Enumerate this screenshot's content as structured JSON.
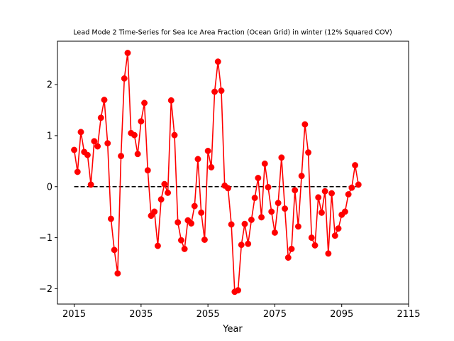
{
  "chart_data": {
    "type": "line",
    "title": "Lead Mode 2 Time-Series for Sea Ice Area Fraction (Ocean Grid) in winter (12% Squared COV)",
    "xlabel": "Year",
    "ylabel": "",
    "xlim": [
      2010,
      2115
    ],
    "ylim": [
      -2.3,
      2.85
    ],
    "xticks": [
      2015,
      2035,
      2055,
      2075,
      2095,
      2115
    ],
    "yticks": [
      -2,
      -1,
      0,
      1,
      2
    ],
    "ytick_labels": [
      "−2",
      "−1",
      "0",
      "1",
      "2"
    ],
    "grid": false,
    "legend": "none",
    "reference_line": {
      "y": 0,
      "x_start": 2015,
      "x_end": 2100,
      "style": "dashed",
      "color": "#000000"
    },
    "series": [
      {
        "color": "#ff0000",
        "marker": "circle",
        "x": [
          2015,
          2016,
          2017,
          2018,
          2019,
          2020,
          2021,
          2022,
          2023,
          2024,
          2025,
          2026,
          2027,
          2028,
          2029,
          2030,
          2031,
          2032,
          2033,
          2034,
          2035,
          2036,
          2037,
          2038,
          2039,
          2040,
          2041,
          2042,
          2043,
          2044,
          2045,
          2046,
          2047,
          2048,
          2049,
          2050,
          2051,
          2052,
          2053,
          2054,
          2055,
          2056,
          2057,
          2058,
          2059,
          2060,
          2061,
          2062,
          2063,
          2064,
          2065,
          2066,
          2067,
          2068,
          2069,
          2070,
          2071,
          2072,
          2073,
          2074,
          2075,
          2076,
          2077,
          2078,
          2079,
          2080,
          2081,
          2082,
          2083,
          2084,
          2085,
          2086,
          2087,
          2088,
          2089,
          2090,
          2091,
          2092,
          2093,
          2094,
          2095,
          2096,
          2097,
          2098,
          2099,
          2100
        ],
        "y": [
          0.72,
          0.29,
          1.07,
          0.68,
          0.62,
          0.04,
          0.89,
          0.79,
          1.35,
          1.7,
          0.85,
          -0.63,
          -1.24,
          -1.7,
          0.6,
          2.12,
          2.62,
          1.05,
          1.01,
          0.64,
          1.28,
          1.64,
          0.32,
          -0.57,
          -0.49,
          -1.16,
          -0.25,
          0.05,
          -0.12,
          1.69,
          1.01,
          -0.7,
          -1.05,
          -1.22,
          -0.66,
          -0.72,
          -0.38,
          0.54,
          -0.51,
          -1.04,
          0.7,
          0.38,
          1.86,
          2.45,
          1.88,
          0.02,
          -0.03,
          -0.74,
          -2.06,
          -2.03,
          -1.14,
          -0.73,
          -1.12,
          -0.65,
          -0.22,
          0.17,
          -0.6,
          0.45,
          -0.01,
          -0.49,
          -0.9,
          -0.32,
          0.57,
          -0.43,
          -1.39,
          -1.22,
          -0.07,
          -0.78,
          0.21,
          1.22,
          0.67,
          -1.0,
          -1.15,
          -0.21,
          -0.51,
          -0.09,
          -1.31,
          -0.13,
          -0.96,
          -0.82,
          -0.55,
          -0.49,
          -0.15,
          -0.02,
          0.42,
          0.04
        ]
      }
    ]
  }
}
